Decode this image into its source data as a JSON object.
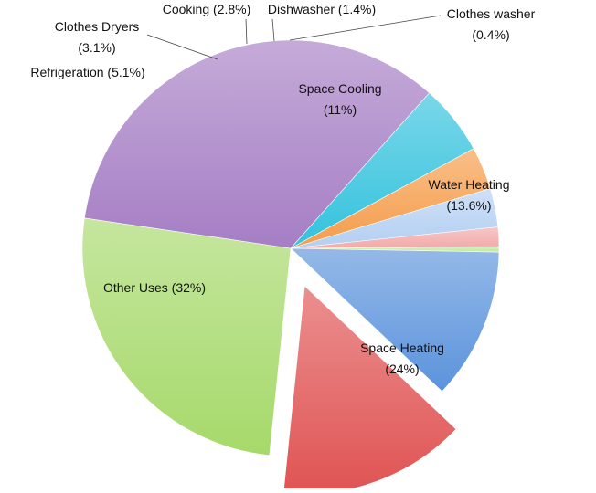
{
  "chart_data": {
    "type": "pie",
    "title": "",
    "slices": [
      {
        "label": "Clothes washer",
        "value": 0.4,
        "display": "(0.4%)",
        "color": "#c3e79a",
        "exploded": false
      },
      {
        "label": "Space Cooling",
        "value": 11,
        "display": "(11%)",
        "color": "#5b93dc",
        "exploded": false
      },
      {
        "label": "Water Heating",
        "value": 13.6,
        "display": "(13.6%)",
        "color": "#e05353",
        "exploded": true
      },
      {
        "label": "Space Heating",
        "value": 24,
        "display": "(24%)",
        "color": "#a6d96a",
        "exploded": false
      },
      {
        "label": "Other Uses",
        "value": 32,
        "display": "(32%)",
        "color": "#a57ec4",
        "exploded": false
      },
      {
        "label": "Refrigeration",
        "value": 5.1,
        "display": "(5.1%)",
        "color": "#33c2dd",
        "exploded": false
      },
      {
        "label": "Clothes Dryers",
        "value": 3.1,
        "display": "(3.1%)",
        "color": "#f59c4a",
        "exploded": false
      },
      {
        "label": "Cooking",
        "value": 2.8,
        "display": "(2.8%)",
        "color": "#b3cff2",
        "exploded": false
      },
      {
        "label": "Dishwasher",
        "value": 1.4,
        "display": "(1.4%)",
        "color": "#f2a9a9",
        "exploded": false
      }
    ]
  }
}
